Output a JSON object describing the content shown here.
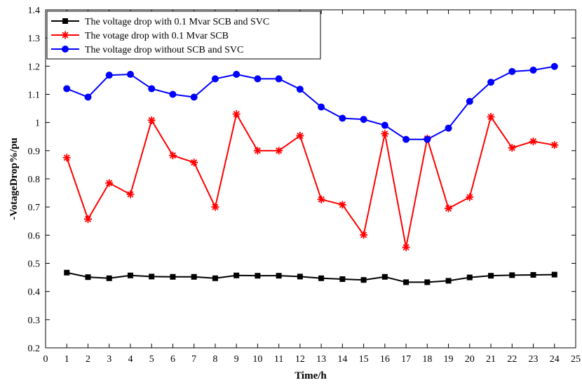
{
  "chart_data": {
    "type": "line",
    "xlabel": "Time/h",
    "ylabel": "-VotageDrop%/pu",
    "xlim": [
      0,
      25
    ],
    "ylim": [
      0.2,
      1.4
    ],
    "xticks": [
      "0",
      "1",
      "2",
      "3",
      "4",
      "5",
      "6",
      "7",
      "8",
      "9",
      "10",
      "11",
      "12",
      "13",
      "14",
      "15",
      "16",
      "17",
      "18",
      "19",
      "20",
      "21",
      "22",
      "23",
      "24",
      "25"
    ],
    "yticks": [
      "0.2",
      "0.3",
      "0.4",
      "0.5",
      "0.6",
      "0.7",
      "0.8",
      "0.9",
      "1",
      "1.1",
      "1.2",
      "1.3",
      "1.4"
    ],
    "grid": false,
    "legend_position": "top-left",
    "x": [
      1,
      2,
      3,
      4,
      5,
      6,
      7,
      8,
      9,
      10,
      11,
      12,
      13,
      14,
      15,
      16,
      17,
      18,
      19,
      20,
      21,
      22,
      23,
      24
    ],
    "series": [
      {
        "name": "The voltage drop with 0.1 Mvar SCB and SVC",
        "color": "#000000",
        "marker": "square",
        "values": [
          0.467,
          0.451,
          0.447,
          0.457,
          0.453,
          0.452,
          0.452,
          0.447,
          0.457,
          0.456,
          0.456,
          0.453,
          0.447,
          0.444,
          0.441,
          0.452,
          0.433,
          0.433,
          0.438,
          0.45,
          0.456,
          0.458,
          0.459,
          0.46
        ]
      },
      {
        "name": "The votage drop with 0.1 Mvar SCB",
        "color": "#ff0000",
        "marker": "star",
        "values": [
          0.875,
          0.657,
          0.785,
          0.745,
          1.008,
          0.883,
          0.858,
          0.7,
          1.03,
          0.9,
          0.9,
          0.953,
          0.727,
          0.708,
          0.601,
          0.96,
          0.557,
          0.943,
          0.695,
          0.735,
          1.02,
          0.91,
          0.933,
          0.92
        ]
      },
      {
        "name": "The voltage drop without SCB and SVC",
        "color": "#0000ff",
        "marker": "circle",
        "values": [
          1.12,
          1.09,
          1.168,
          1.171,
          1.12,
          1.1,
          1.09,
          1.155,
          1.171,
          1.155,
          1.155,
          1.118,
          1.055,
          1.015,
          1.011,
          0.99,
          0.94,
          0.94,
          0.98,
          1.075,
          1.143,
          1.181,
          1.186,
          1.199
        ]
      }
    ]
  }
}
